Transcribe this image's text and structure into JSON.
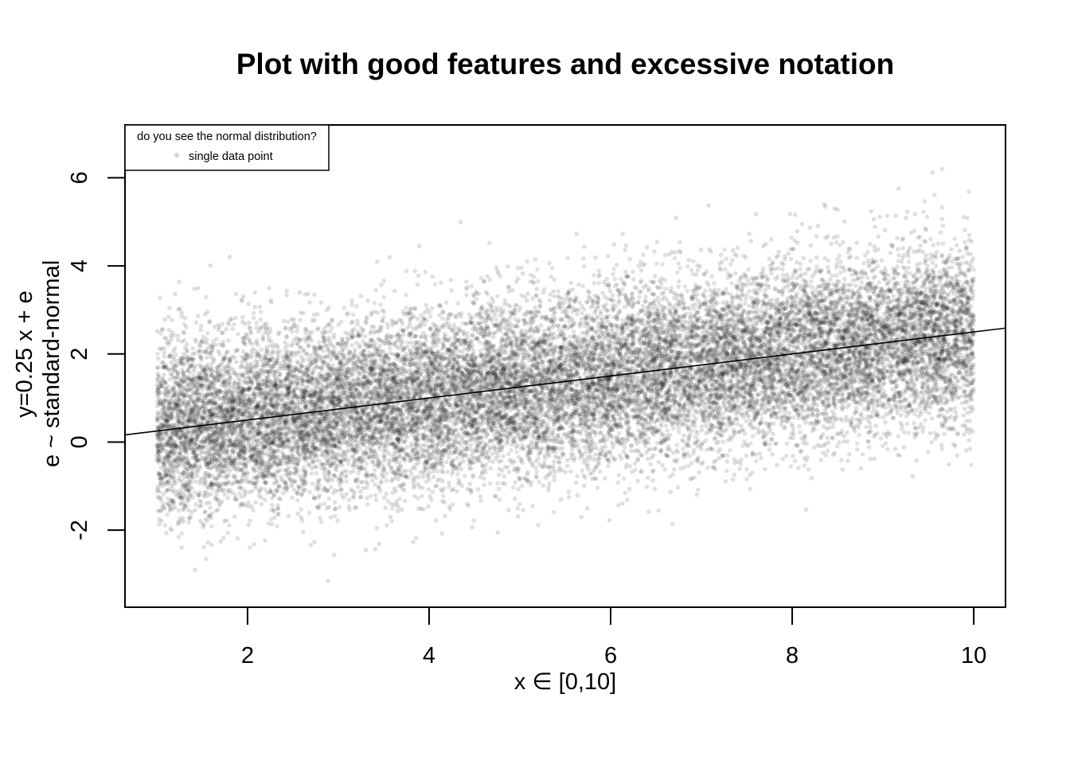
{
  "chart_data": {
    "type": "scatter",
    "title": "Plot with good features and excessive notation",
    "xlabel": "x ∈  [0,10]",
    "ylabel_lines": [
      "y=0.25 x + e",
      "e ~ standard-normal"
    ],
    "xlim": [
      0.65,
      10.35
    ],
    "ylim": [
      -3.75,
      7.2
    ],
    "x_ticks": [
      2,
      4,
      6,
      8,
      10
    ],
    "y_ticks": [
      -2,
      0,
      2,
      4,
      6
    ],
    "x_tick_labels": [
      "2",
      "4",
      "6",
      "8",
      "10"
    ],
    "y_tick_labels": [
      "-2",
      "0",
      "2",
      "4",
      "6"
    ],
    "grid": false,
    "series": [
      {
        "name": "single data point",
        "model": "y = 0.25 x + e, e ~ standard-normal",
        "x_range": [
          1,
          10
        ],
        "approx_point_count": 20000,
        "color": "#000000",
        "opacity": 0.12
      }
    ],
    "reference_line": {
      "slope": 0.25,
      "intercept": 0
    },
    "legend": {
      "position": "top-left",
      "title": "do you see the normal distribution?",
      "entries": [
        "single data point"
      ]
    }
  }
}
